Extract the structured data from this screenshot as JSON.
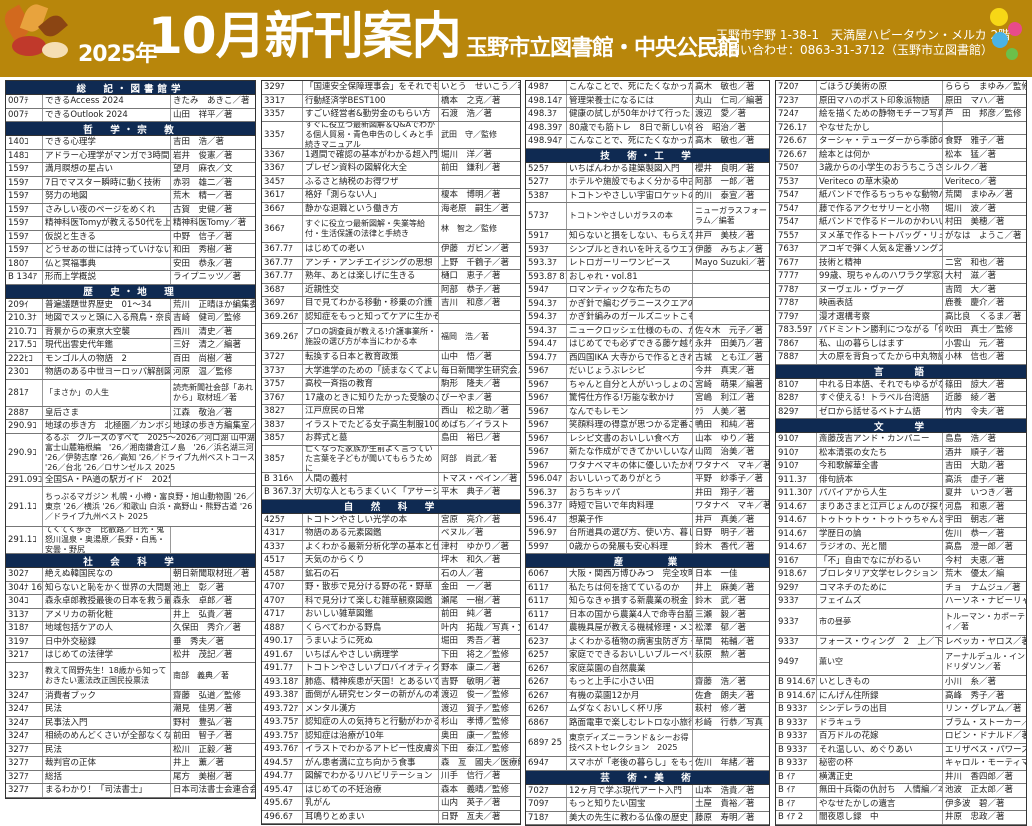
{
  "header": {
    "year": "2025年",
    "title": "10月新刊案内",
    "library": "玉野市立図書館・中央公民館",
    "address_line1": "玉野市宇野 1-38-1　天満屋ハピータウン・メルカ 2階",
    "address_line2": "お問い合わせ：0863-31-3712（玉野市立図書館）"
  },
  "colors": {
    "header_bg": "#b8860b",
    "section_bg": "#0f2a52",
    "sub_bg": "#d9e4f2"
  },
  "col1": [
    {
      "s": "総　記・図書館学"
    },
    {
      "c": "007ﾃ",
      "t": "できるAccess 2024",
      "a": "きたみ　あきこ／著"
    },
    {
      "c": "007ﾃ",
      "t": "できるOutlook 2024",
      "a": "山田　祥平／著"
    },
    {
      "s": "哲　学・宗　教"
    },
    {
      "c": "140ｺ",
      "t": "できる心理学",
      "a": "吉田　浩／著"
    },
    {
      "c": "148ｺ",
      "t": "アドラー心理学がマンガで3時間でマスターできる本",
      "a": "岩井　俊憲／著"
    },
    {
      "c": "159ｱ",
      "t": "満月瞑想の星占い",
      "a": "望月　麻衣／文"
    },
    {
      "c": "159ｱ",
      "t": "7日でマスター瞬時に動く技術",
      "a": "赤羽　雄二／著"
    },
    {
      "c": "159ｱ",
      "t": "努力の地図",
      "a": "荒木　精一／著"
    },
    {
      "c": "159ｱ",
      "t": "さみしい夜のページをめくれ",
      "a": "古賀　史健／著"
    },
    {
      "c": "159ｱ",
      "t": "精神科医Tomyが教える50代を上手に生きる言葉",
      "a": "精神科医Tomy／著"
    },
    {
      "c": "159ｱ",
      "t": "仮説と生きる",
      "a": "中野　信子／著"
    },
    {
      "c": "159ｱ",
      "t": "どうせあの世には持っていけないんだから",
      "a": "和田　秀樹／著"
    },
    {
      "c": "180ｱ",
      "t": "仏と冥福事典",
      "a": "安田　恭永／著"
    },
    {
      "c": "B 134ｱ",
      "t": "形而上学概説",
      "a": "ライプニッツ／著"
    },
    {
      "s": "歴　史・地　理"
    },
    {
      "c": "209ｲ",
      "t": "普遍議題世界歴史　01～34",
      "a": "荒川　正晴ほか編集委員"
    },
    {
      "c": "210.3ﾅ",
      "t": "地図でスッと頭に入る飛鳥・奈良時代",
      "a": "吉崎　健司／監修"
    },
    {
      "c": "210.7ｺ",
      "t": "背景からの東京大空襲",
      "a": "西川　清史／著"
    },
    {
      "c": "217.5ｺ",
      "t": "現代出雲史代年鑑",
      "a": "三好　清之／編著"
    },
    {
      "c": "222ﾋｺ",
      "t": "モンゴル人の物語　2",
      "a": "百田　尚樹／著"
    },
    {
      "c": "230ｺ",
      "t": "物語のある中世ヨーロッパ解剖図鑑",
      "a": "河原　温／監修"
    },
    {
      "c": "281ｱ",
      "t": "「まさか」の人生",
      "a": "読売新聞社会部「あれから」取材班／著",
      "tall": 1
    },
    {
      "c": "288ｱ",
      "t": "皇后さま",
      "a": "江森　敬治／著"
    },
    {
      "c": "290.9ｺ",
      "t": "地球の歩き方　北極圏／カンボジア／インド／ネパール",
      "a": "地球の歩き方編集室／編集"
    },
    {
      "c": "290.9ｺ",
      "t": "るるぶ　クルーズのすべて　2025～2026／河口湖 山中湖富士山麓箱根編　'26／湘南鎌倉江ノ島　'26／浜名湖三河 '26／伊勢志摩 '26／高知 '26／ドライブ九州ベストコース '26／台北 '26／ロサンゼルス 2025",
      "a": "",
      "tall3": 1
    },
    {
      "c": "291.09ｺ",
      "t": "全国SA・PA道の駅ガイド　2025",
      "a": ""
    },
    {
      "c": "291.1ｺ",
      "t": "ちっぷるマガジン 札幌・小樽・富良野・旭山動物園 '26／東京 '26／横浜 '26／和歌山 白浜・高野山・熊野古道 '26／ドライブ九州ベスト 2025",
      "a": "",
      "tall3": 1
    },
    {
      "c": "291.1ｺ",
      "t": "てくてく歩き　比叡路／日光・鬼怒川温泉・奥湯原／長野・白馬・安曇・野尻",
      "a": "",
      "tall": 1
    },
    {
      "s": "社　会　科　学"
    },
    {
      "c": "302ｱ",
      "t": "絶えぬ韓国民なの",
      "a": "朝日新聞取材班／著"
    },
    {
      "c": "304ﾅ 16",
      "t": "知らないと恥をかく世界の大問題　16",
      "a": "池上　彰／著"
    },
    {
      "c": "304ｺ",
      "t": "森永卓郎教授最後の日本を救う最後の提言",
      "a": "森永　卓郎／著"
    },
    {
      "c": "313ｱ",
      "t": "アメリカの新化粧",
      "a": "井上　弘貴／著"
    },
    {
      "c": "318ｱ",
      "t": "地域包括ケアの人",
      "a": "久保田　秀介／著"
    },
    {
      "c": "319ｱ",
      "t": "日中外交秘録",
      "a": "垂　秀夫／著"
    },
    {
      "c": "321ｱ",
      "t": "はじめての法律学",
      "a": "松井　茂記／著"
    },
    {
      "c": "323ｱ",
      "t": "教えて岡野先生！18歳から知っておきたい憲法改正国民投票法",
      "a": "南部　義典／著",
      "tall": 1
    },
    {
      "c": "324ｱ",
      "t": "消費者ブック",
      "a": "齋藤　弘道／監修"
    },
    {
      "c": "324ｱ",
      "t": "民法",
      "a": "潮見　佳男／著"
    },
    {
      "c": "324ｱ",
      "t": "民事法入門",
      "a": "野村　豊弘／著"
    },
    {
      "c": "324ｱ",
      "t": "相続のめんどくさいが全部なくなる本",
      "a": "前田　智子／著"
    },
    {
      "c": "327ｱ",
      "t": "民法",
      "a": "松川　正毅／著"
    },
    {
      "c": "327ｱ",
      "t": "裁判官の正体",
      "a": "井上　薫／著"
    },
    {
      "c": "327ｱ",
      "t": "総括",
      "a": "尾方　美樹／著"
    },
    {
      "c": "327ｱ",
      "t": "まるわかり！「司法書士」",
      "a": "日本司法書士会連合会／編"
    }
  ],
  "col2": [
    {
      "c": "329ｱ",
      "t": "「国連安全保障理事会」をそれでも見に行く",
      "a": "いとう　せいこう／著"
    },
    {
      "c": "331ｱ",
      "t": "行動経済学BEST100",
      "a": "橋本　之克／著"
    },
    {
      "c": "335ｱ",
      "t": "すごい経営者&勤労金のもらい方",
      "a": "石渡　浩／著"
    },
    {
      "c": "335ｱ",
      "t": "すぐに役立つ最新図解＆Q&Aでわかる個人貿易・青色申告のしくみと手続きマニュアル",
      "a": "武田　守／監修",
      "tall": 1
    },
    {
      "c": "336ｱ",
      "t": "1週間で確認の基本がわかる超入門",
      "a": "堀川　洋／著"
    },
    {
      "c": "336ｱ",
      "t": "プレゼン資料の図解化大全",
      "a": "前田　鎌利／著"
    },
    {
      "c": "345ｱ",
      "t": "ふるさと納税のお得ワザ",
      "a": ""
    },
    {
      "c": "361ｱ",
      "t": "格好「測らない人」",
      "a": "榎本　博明／著"
    },
    {
      "c": "366ｱ",
      "t": "静かな退職という働き方",
      "a": "海老原　嗣生／著"
    },
    {
      "c": "366ｱ",
      "t": "すぐに役立つ最新図解・失業等給付・生活保護の法律と手続き",
      "a": "林　智之／監修",
      "tall": 1
    },
    {
      "c": "367.7ｱ",
      "t": "はじめての老い",
      "a": "伊藤　ガビン／著"
    },
    {
      "c": "367.7ｱ",
      "t": "アンチ・アンチエイジングの思想",
      "a": "上野　千鶴子／著"
    },
    {
      "c": "367.7ｱ",
      "t": "熟年、あとは楽しげに生きる",
      "a": "樋口　恵子／著"
    },
    {
      "c": "368ｱ",
      "t": "近親性交",
      "a": "阿部　恭子／著"
    },
    {
      "c": "369ｱ",
      "t": "目で見てわかる移動・移乗の介護",
      "a": "吉川　和彦／著"
    },
    {
      "c": "369.26ｱ",
      "t": "認知症をもっと知ってケアに生かそう!",
      "a": ""
    },
    {
      "c": "369.26ｱ",
      "t": "プロの調査員が教える!介護事業所・施設の選び方が本当にわかる本",
      "a": "福岡　浩／著",
      "tall": 1
    },
    {
      "c": "372ｱ",
      "t": "転換する日本と教育政策",
      "a": "山中　悟／著"
    },
    {
      "c": "373ｱ",
      "t": "大学進学のための「読まなくてよい」留学金ガイド",
      "a": "毎日新聞学生研究会／編"
    },
    {
      "c": "375ｱ",
      "t": "高校一斉指の教育",
      "a": "駒形　隆夫／著"
    },
    {
      "c": "376ｱ",
      "t": "17歳のときに知りたかった受験のこと、人生のこと。",
      "a": "びーやま／著"
    },
    {
      "c": "382ｱ",
      "t": "江戸庶民の日常",
      "a": "西山　松之助／著"
    },
    {
      "c": "383ｱ",
      "t": "イラストでたどる女子高生制服100年図鑑",
      "a": "めばち／イラスト"
    },
    {
      "c": "385ｱ",
      "t": "お葬式と墓",
      "a": "島田　裕巳／著"
    },
    {
      "c": "385ｱ",
      "t": "亡くなった家族が生前よく言っていた言葉を子どもが聞いてもらうために",
      "a": "阿部　尚武／著",
      "tall": 1
    },
    {
      "c": "B 316ﾍ",
      "t": "人間の義村",
      "a": "トマス・ペイン／著"
    },
    {
      "c": "B 367.3ｱ",
      "t": "大切な人ともうまくいく「アサーション」",
      "a": "平木　典子／著"
    },
    {
      "s": "自　然　科　学"
    },
    {
      "c": "425ｱ",
      "t": "トコトンやさしい光学の本",
      "a": "宮原　亮介／著"
    },
    {
      "c": "431ｱ",
      "t": "物語のある元素図鑑",
      "a": "ベヌル／著"
    },
    {
      "c": "433ｱ",
      "t": "よくわかる最新分析化学の基本と仕組み",
      "a": "津村　ゆかり／著"
    },
    {
      "c": "451ｱ",
      "t": "天気のからくり",
      "a": "坪木　和久／著"
    },
    {
      "c": "458ｱ",
      "t": "鉱石の石",
      "a": "石の人／著"
    },
    {
      "c": "470ｱ",
      "t": "野・散歩で見分ける野の花・野草",
      "a": "金田　一／著"
    },
    {
      "c": "470ｱ",
      "t": "科で見分けて楽しむ雑草観察図鑑",
      "a": "瀬尾　一樹／著"
    },
    {
      "c": "471ｱ",
      "t": "おいしい雑草図鑑",
      "a": "前田　純／著"
    },
    {
      "c": "488ｱ",
      "t": "くらべてわかる野鳥",
      "a": "叶内　拓哉／写真・文"
    },
    {
      "c": "490.1ｱ",
      "t": "うまいように死ぬ",
      "a": "堀田　秀吾／著"
    },
    {
      "c": "491.6ｱ",
      "t": "いちばんやさしい病理学",
      "a": "下田　将之／監修"
    },
    {
      "c": "491.7ｱ",
      "t": "トコトンやさしいプロバイオティクスの本",
      "a": "野本　康二／著"
    },
    {
      "c": "493.18ｱ",
      "t": "肺癌、精神疾患が天国！とあるいて大往生",
      "a": "吉野　敏明／著"
    },
    {
      "c": "493.38ｱ",
      "t": "面倒がん研究センターの新がんの本",
      "a": "渡辺　俊一／監修"
    },
    {
      "c": "493.72ｱ",
      "t": "メンタル漢方",
      "a": "渡辺　賀子／監修"
    },
    {
      "c": "493.75ｱ",
      "t": "認知症の人の気持ちと行動がわかる本",
      "a": "杉山　孝博／監修"
    },
    {
      "c": "493.75ｱ",
      "t": "認知症は治療が10年",
      "a": "奥田　康一／監修"
    },
    {
      "c": "493.76ｱ",
      "t": "イラストでわかるアトピー性皮膚炎の人が幸せになる本",
      "a": "下田　泰江／監修"
    },
    {
      "c": "494.5ｱ",
      "t": "がん患者満に立ち向かう食事",
      "a": "森　亙　國夫／医療解説"
    },
    {
      "c": "494.7ｱ",
      "t": "図解でわかるリハビリテーション",
      "a": "川手　信行／著"
    },
    {
      "c": "495.4ｱ",
      "t": "はじめての不妊治療",
      "a": "森本　義晴／監修"
    },
    {
      "c": "495.6ｱ",
      "t": "乳がん",
      "a": "山内　英子／著"
    },
    {
      "c": "496.6ｱ",
      "t": "耳鳴りとめまい",
      "a": "日野　亙夫／著"
    }
  ],
  "col3": [
    {
      "c": "498ｱ",
      "t": "こんなことで、死にたくなかった",
      "a": "高木　敏也／著"
    },
    {
      "c": "498.14ｱ",
      "t": "管理栄養士になるには",
      "a": "丸山　仁司／編著"
    },
    {
      "c": "498.3ｱ",
      "t": "健康の試しが50年かけて行ったどりついた元気をきちんと体調",
      "a": "渡辺　愛／著"
    },
    {
      "c": "498.39ｱ",
      "t": "80歳でも筋トレ　8日で新しい体がやってくること",
      "a": "谷　昭治／著"
    },
    {
      "c": "498.94ｱ",
      "t": "こんなことで、死にたくなかった",
      "a": "高木　敏也／著"
    },
    {
      "s": "技　術・工　学"
    },
    {
      "c": "525ｱ",
      "t": "いちばんわかる建築製図入門",
      "a": "櫻井　良明／著"
    },
    {
      "c": "527ｱ",
      "t": "ホテルや施設でもよく分かる中古戸建てのリフォーム",
      "a": "阿部　一郎／著"
    },
    {
      "c": "538ｱ",
      "t": "トコトンやさしい宇宙ロケットの本",
      "a": "的川　泰宣／著"
    },
    {
      "c": "573ｱ",
      "t": "トコトンやさしいガラスの本",
      "a": "ニューガラスフォーラム／編著",
      "tall": 1
    },
    {
      "c": "591ｱ",
      "t": "知らないと損をしない、もらえない要件お金ルール",
      "a": "井戸　美枝／著"
    },
    {
      "c": "593ｱ",
      "t": "シンプルときれいを叶えるウエアとバッグ",
      "a": "伊藤　みちよ／著"
    },
    {
      "c": "593.3ｱ",
      "t": "レトロガーリーワンピース",
      "a": "Mayo Suzuki／著"
    },
    {
      "c": "593.8ｱ 81",
      "t": "おしゃれ・vol.81",
      "a": ""
    },
    {
      "c": "594ｱ",
      "t": "ロマンティックな布たちの",
      "a": ""
    },
    {
      "c": "594.3ｱ",
      "t": "かぎ針で編むグラニースクエアのウエアと小物",
      "a": ""
    },
    {
      "c": "594.3ｱ",
      "t": "かぎ針編みのガールズニットこもの",
      "a": ""
    },
    {
      "c": "594.3ｱ",
      "t": "ニュークロッシェ仕様のもの、かぎ針編みの可愛いお鞄",
      "a": "佐々木　元子／著"
    },
    {
      "c": "594.4ｱ",
      "t": "はじめてでも必ずできる藤ケ越り",
      "a": "永井　田美乃／著"
    },
    {
      "c": "594.7ｱ",
      "t": "西四国IKA 大寺からで作るときわかわいさ対印もの",
      "a": "古城　とも江／著"
    },
    {
      "c": "596ｱ",
      "t": "だいじょうぶレシピ",
      "a": "今井　真実／著"
    },
    {
      "c": "596ｱ",
      "t": "ちゃんと自分と人がいっしょのごはん",
      "a": "宮崎　萌果／編著"
    },
    {
      "c": "596ｱ",
      "t": "驚愕仕方作る!万能な軟かけ",
      "a": "宮嶋　利江／著"
    },
    {
      "c": "596ｱ",
      "t": "なんでもレモン",
      "a": "ｸﾗ　人美／著"
    },
    {
      "c": "596ｱ",
      "t": "笑顔料理の得意が思つかる定番ごはん",
      "a": "鴨田　和純／著"
    },
    {
      "c": "596ｱ",
      "t": "レシピ文書のおいしい食べ方",
      "a": "山本　ゆり／著"
    },
    {
      "c": "596ｱ",
      "t": "新たな作成ができてかいしいなんでも高温のケル",
      "a": "山岡　治美／著"
    },
    {
      "c": "596ｱ",
      "t": "ワタナベマキの体に優しいたかわリスープ",
      "a": "ワタナベ　マキ／著"
    },
    {
      "c": "596.04ｱ",
      "t": "おいしいってありがとう",
      "a": "平野　紗季子／著"
    },
    {
      "c": "596.3ｱ",
      "t": "おうちキッパ",
      "a": "井田　翔子／著"
    },
    {
      "c": "596.37ｱ",
      "t": "時短で旨いで年肉料理",
      "a": "ワタナベ　マキ／著"
    },
    {
      "c": "596.4ｱ",
      "t": "想菓子作",
      "a": "井戸　真美／著"
    },
    {
      "c": "596.9ｱ",
      "t": "台所道具の選び方、使い方、暮しの",
      "a": "日野　明子／著"
    },
    {
      "c": "599ｱ",
      "t": "0歳からの発展も安心料理",
      "a": "鈴木　香代／著"
    },
    {
      "s": "産　　　業"
    },
    {
      "c": "606ｱ",
      "t": "大阪・関西万博ひみつ　完全攻略編",
      "a": "日本　一佳"
    },
    {
      "c": "611ｱ",
      "t": "私たちは何を捨てているのか",
      "a": "井上　麻美／著"
    },
    {
      "c": "611ｱ",
      "t": "知らなきゃ損する新農業の税金",
      "a": "鈴木　武／著"
    },
    {
      "c": "611ｱ",
      "t": "日本の国から農業4人で命寺台脇作出て",
      "a": "三瀬　毅／著"
    },
    {
      "c": "614ｱ",
      "t": "農機具屋が教える機械修理・メンテ術",
      "a": "松澤　郁／著"
    },
    {
      "c": "623ｱ",
      "t": "よくわかる植物の病害虫防ぎ方・なおし方",
      "a": "草間　祐輔／著"
    },
    {
      "c": "625ｱ",
      "t": "家庭でできるおいしいブルーベリー栽培12か月",
      "a": "荻原　勲／著"
    },
    {
      "c": "626ｱ",
      "t": "家庭菜園の自然農業",
      "a": ""
    },
    {
      "c": "626ｱ",
      "t": "もっと上手に小さい田",
      "a": "齋藤　浩／著"
    },
    {
      "c": "626ｱ",
      "t": "有機の菜園12か月",
      "a": "佐倉　朗夫／著"
    },
    {
      "c": "626ｱ",
      "t": "ムダなくおいしく杯リ序",
      "a": "萩村　修／著"
    },
    {
      "c": "686ｱ",
      "t": "路面電車で楽しむレトロな小旅行",
      "a": "杉崎　行恭／写真"
    },
    {
      "c": "689ｱ 25",
      "t": "東京ディズニーランド＆シーお得技ベストセレクション　2025",
      "a": "",
      "tall": 1
    },
    {
      "c": "694ｱ",
      "t": "スマホが「老後の暮らし」をもっと楽しく効果にまえてくれる",
      "a": "佐川　年緒／著"
    },
    {
      "s": "芸　術・美　術"
    },
    {
      "c": "702ｱ",
      "t": "12ヶ月で学ぶ現代アート入門",
      "a": "山本　浩貴／著"
    },
    {
      "c": "709ｱ",
      "t": "もっと知りたい国宝",
      "a": "土屋　貴裕／著"
    },
    {
      "c": "718ｱ",
      "t": "美大の先生に教わる仏像の歴史",
      "a": "藤原　寿明／著"
    }
  ],
  "col4": [
    {
      "c": "720ｱ",
      "t": "ごほうび美術の原",
      "a": "ららら　まゆみ／監修・解説"
    },
    {
      "c": "723ｱ",
      "t": "原田マハのポスト印象派物語",
      "a": "原田　マハ／著"
    },
    {
      "c": "724ｱ",
      "t": "絵を描くための静物モチーフ写真集",
      "a": "芦　田　邦彦／監修"
    },
    {
      "c": "726.1ｱ",
      "t": "やなせたかし",
      "a": ""
    },
    {
      "c": "726.6ｱ",
      "t": "ターシャ・テューダーから季節の贈り物",
      "a": "食野　雅子／著"
    },
    {
      "c": "726.6ｱ",
      "t": "絵本とは何か",
      "a": "松本　猛／著"
    },
    {
      "c": "750ｱ",
      "t": "3歳からの小学生のおうちこうさく",
      "a": "シルク／著"
    },
    {
      "c": "753ｱ",
      "t": "Veriteco の草木染め",
      "a": "Veriteco／著"
    },
    {
      "c": "754ｱ",
      "t": "紙バンドで作るちっちゃな動物バスケットと四季の小飾り",
      "a": "荒関　まゆみ／著"
    },
    {
      "c": "754ｱ",
      "t": "藤で作るアクセサリーと小物",
      "a": "堀川　波／著"
    },
    {
      "c": "754ｱ",
      "t": "紙バンドで作るドールのかわいいミニチュアグッズ",
      "a": "村田　美穂／著"
    },
    {
      "c": "755ｱ",
      "t": "ヌメ革で作るトートバッグ・リュック・鞄",
      "a": "がなは　ようこ／著"
    },
    {
      "c": "763ｱ",
      "t": "アコギで弾く人気＆定番ソングス",
      "a": ""
    },
    {
      "c": "767ｱ",
      "t": "技術と精神",
      "a": "二宮　和也／著"
    },
    {
      "c": "777ｱ",
      "t": "99歳、現ちゃんのハワラク学窓期",
      "a": "大村　滋／著"
    },
    {
      "c": "778ｱ",
      "t": "ヌーヴェル・ヴァーグ",
      "a": "吉岡　大／著"
    },
    {
      "c": "778ｱ",
      "t": "映画表話",
      "a": "鹿養　慶介／著"
    },
    {
      "c": "779ｱ",
      "t": "漫才選構考察",
      "a": "高比良　くるま／著"
    },
    {
      "c": "783.59ｱ",
      "t": "パドミントン勝利につながる「体づくり」",
      "a": "吹田　真士／監修"
    },
    {
      "c": "786ｱ",
      "t": "私、山の暮らしはます",
      "a": "小雲山　元／著"
    },
    {
      "c": "788ｱ",
      "t": "大の原を背負ってたから中丸物語",
      "a": "小林　信也／著"
    },
    {
      "s": "言　　語"
    },
    {
      "c": "810ｱ",
      "t": "中れる日本語、それでもゆるがない日本語",
      "a": "篠田　諒大／著"
    },
    {
      "c": "828ｱ",
      "t": "すぐ使える！トラベル台湾語",
      "a": "近藤　綾／著"
    },
    {
      "c": "829ｱ",
      "t": "ゼロから話せるベトナム語",
      "a": "竹内　令夫／著"
    },
    {
      "s": "文　　学"
    },
    {
      "c": "910ｱ",
      "t": "斎藤茂吉アンド・カンパニー",
      "a": "島島　浩／著"
    },
    {
      "c": "910ｱ",
      "t": "松本清張の女たち",
      "a": "酒井　順子／著"
    },
    {
      "c": "910ｱ",
      "t": "今和歌解華全書",
      "a": "吉田　大助／著"
    },
    {
      "c": "911.3ｱ",
      "t": "俳句読本",
      "a": "高浜　虚子／著"
    },
    {
      "c": "911.30ｱ",
      "t": "パパイアから人生",
      "a": "夏井　いつき／著"
    },
    {
      "c": "914.6ｱ",
      "t": "まりあさまと江戸じょんのび探り",
      "a": "河島　和恵／著"
    },
    {
      "c": "914.6ｱ",
      "t": "トゥトゥトゥ・トゥトゥちゃんとかコウタ生存のすぐとか",
      "a": "宇田　朝志／著"
    },
    {
      "c": "914.6ｱ",
      "t": "学歴日の論",
      "a": "佐川　恭一／著"
    },
    {
      "c": "914.6ｱ",
      "t": "ラジオの、光と闇",
      "a": "高島　澄一郎／著"
    },
    {
      "c": "916ｱ",
      "t": "「不」自由でなにがわるい",
      "a": "今村　夫恵／著"
    },
    {
      "c": "918.6ｱ",
      "t": "ブロレタリア文学セレクション",
      "a": "荒木　優太／編"
    },
    {
      "c": "929ｱ",
      "t": "コマネチのために",
      "a": "チョ　ナムジュ／著"
    },
    {
      "c": "933ｱ",
      "t": "フェイムズ",
      "a": "ハーソネ・ナビーリャ／著"
    },
    {
      "c": "933ｱ",
      "t": "市の昼夢",
      "a": "トルーマン・カポーティ／著",
      "tall": 1
    },
    {
      "c": "933ｱ",
      "t": "フォース・ウィング　2　上／下",
      "a": "レベッカ・ヤロス／著"
    },
    {
      "c": "949ｱ",
      "t": "薫い空",
      "a": "アーナルデュル・インドリダソン／著",
      "tall": 1
    },
    {
      "c": "B 914.6ｱ",
      "t": "いとしきもの",
      "a": "小川　糸／著"
    },
    {
      "c": "B 914.6ｱ",
      "t": "にんげん住所録",
      "a": "高峰　秀子／著"
    },
    {
      "c": "B 933ｱ",
      "t": "シンデレラの出目",
      "a": "リン・グレアム／著"
    },
    {
      "c": "B 933ｱ",
      "t": "ドラキュラ",
      "a": "ブラム・ストーカー／著"
    },
    {
      "c": "B 933ｱ",
      "t": "百万ドルの花嫁",
      "a": "ロビン・ドナルド／著"
    },
    {
      "c": "B 933ｱ",
      "t": "それ温しい、めぐりあい",
      "a": "エリザベス・パワーズ／著"
    },
    {
      "c": "B 933ｱ",
      "t": "秘密の杯",
      "a": "キャロル・モーティマー／著"
    },
    {
      "c": "B ｲｱ",
      "t": "横溝正史",
      "a": "井川　香四郎／著"
    },
    {
      "c": "B ｲｱ",
      "t": "無田十兵衛の仇討ち　人情編／本薬編",
      "a": "池波　正太郎／著"
    },
    {
      "c": "B ｲｱ",
      "t": "やなせたかしの遺言",
      "a": "伊多波　碧／著"
    },
    {
      "c": "B ｲｱ 2",
      "t": "闇夜恩し録　中",
      "a": "井原　忠政／著"
    }
  ]
}
